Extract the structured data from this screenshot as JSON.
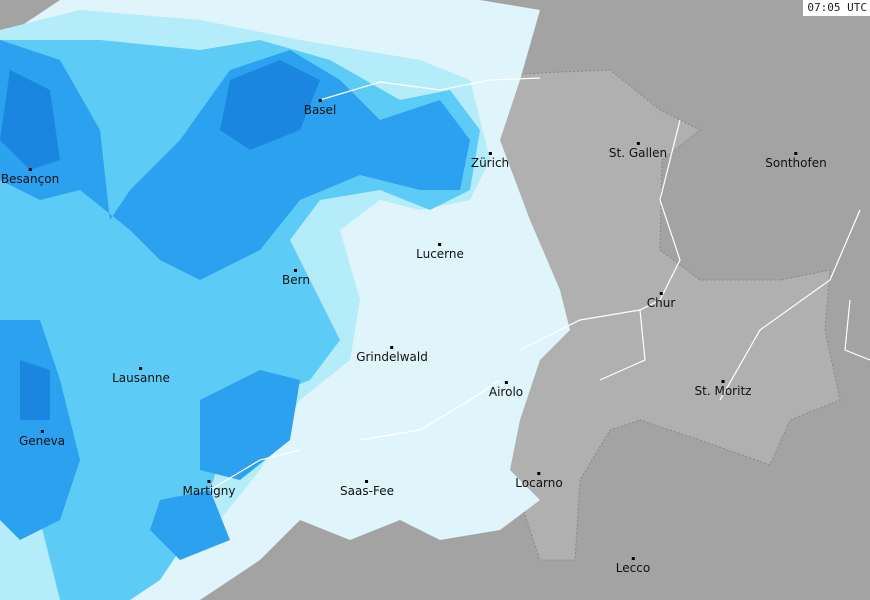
{
  "timestamp": "07:05 UTC",
  "colors": {
    "background": "#a3a3a3",
    "switzerland": "#b0b0b0",
    "precip_light": "#dff4fb",
    "precip_low": "#b5ecfa",
    "precip_mid": "#5ccbf6",
    "precip_high": "#2ba1ef",
    "precip_heavy": "#1b86df"
  },
  "cities": [
    {
      "name": "Basel"
    },
    {
      "name": "Besançon"
    },
    {
      "name": "Zürich"
    },
    {
      "name": "St. Gallen"
    },
    {
      "name": "Sonthofen"
    },
    {
      "name": "Lucerne"
    },
    {
      "name": "Bern"
    },
    {
      "name": "Chur"
    },
    {
      "name": "Grindelwald"
    },
    {
      "name": "Lausanne"
    },
    {
      "name": "Airolo"
    },
    {
      "name": "St. Moritz"
    },
    {
      "name": "Geneva"
    },
    {
      "name": "Martigny"
    },
    {
      "name": "Saas-Fee"
    },
    {
      "name": "Locarno"
    },
    {
      "name": "Lecco"
    }
  ]
}
